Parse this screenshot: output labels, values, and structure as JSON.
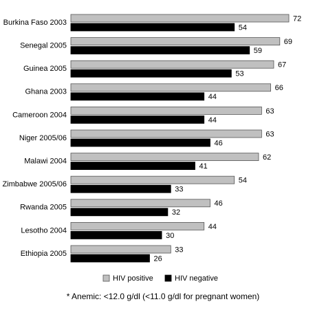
{
  "chart_data": {
    "type": "bar",
    "orientation": "horizontal",
    "categories": [
      "Burkina Faso 2003",
      "Senegal 2005",
      "Guinea 2005",
      "Ghana 2003",
      "Cameroon 2004",
      "Niger 2005/06",
      "Malawi 2004",
      "Zimbabwe 2005/06",
      "Rwanda 2005",
      "Lesotho 2004",
      "Ethiopia 2005"
    ],
    "series": [
      {
        "name": "HIV positive",
        "color": "#c0c0c0",
        "values": [
          72,
          69,
          67,
          66,
          63,
          63,
          62,
          54,
          46,
          44,
          33
        ]
      },
      {
        "name": "HIV negative",
        "color": "#000000",
        "values": [
          54,
          59,
          53,
          44,
          44,
          46,
          41,
          33,
          32,
          30,
          26
        ]
      }
    ],
    "legend": "bottom",
    "footnote": "* Anemic: <12.0 g/dl (<11.0 g/dl for pregnant women)"
  }
}
